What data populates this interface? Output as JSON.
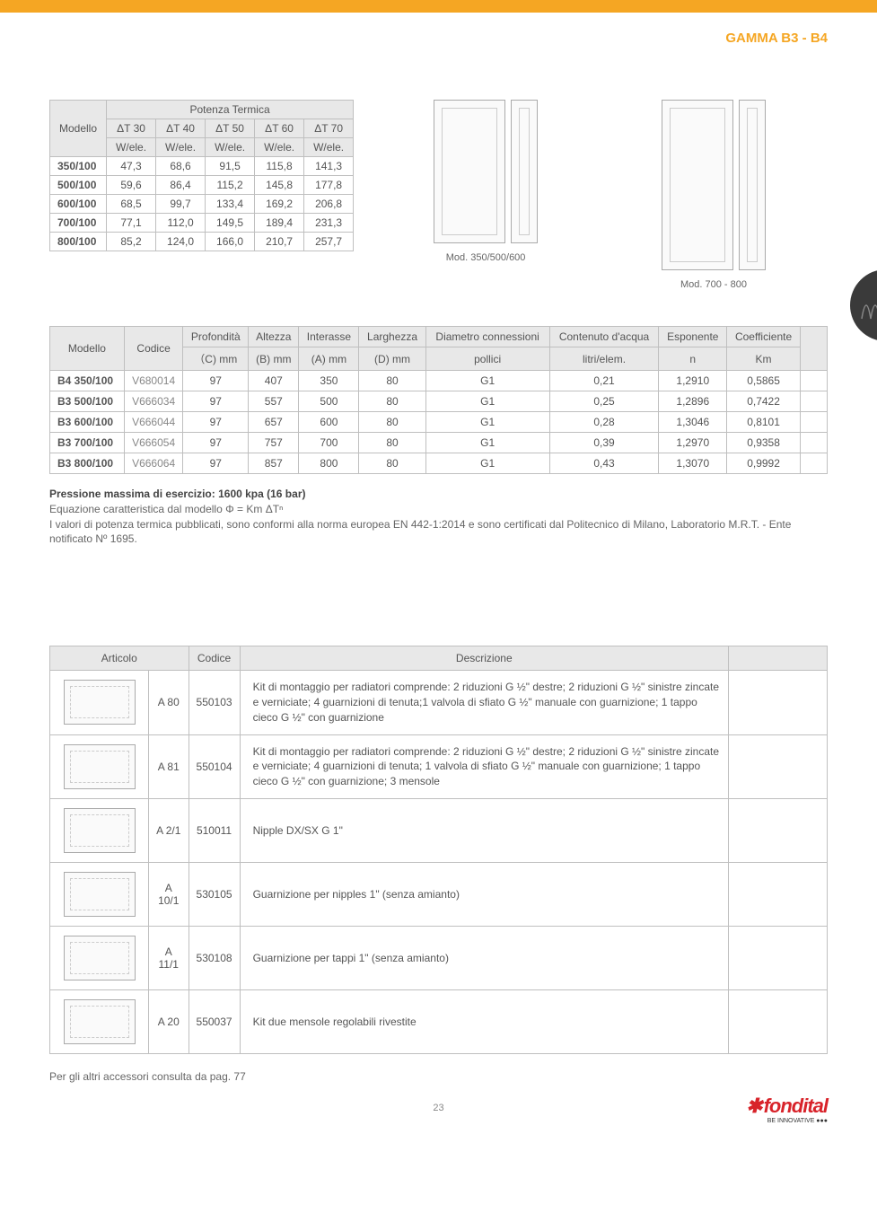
{
  "header": {
    "title": "GAMMA B3 - B4"
  },
  "thermal": {
    "group_label": "Potenza Termica",
    "model_header": "Modello",
    "delta_headers": [
      "ΔT 30",
      "ΔT 40",
      "ΔT 50",
      "ΔT 60",
      "ΔT 70"
    ],
    "unit": "W/ele.",
    "rows": [
      {
        "model": "350/100",
        "vals": [
          "47,3",
          "68,6",
          "91,5",
          "115,8",
          "141,3"
        ]
      },
      {
        "model": "500/100",
        "vals": [
          "59,6",
          "86,4",
          "115,2",
          "145,8",
          "177,8"
        ]
      },
      {
        "model": "600/100",
        "vals": [
          "68,5",
          "99,7",
          "133,4",
          "169,2",
          "206,8"
        ]
      },
      {
        "model": "700/100",
        "vals": [
          "77,1",
          "112,0",
          "149,5",
          "189,4",
          "231,3"
        ]
      },
      {
        "model": "800/100",
        "vals": [
          "85,2",
          "124,0",
          "166,0",
          "210,7",
          "257,7"
        ]
      }
    ]
  },
  "diagrams": {
    "label1": "Mod. 350/500/600",
    "label2": "Mod. 700 - 800"
  },
  "specs": {
    "headers1": [
      "Modello",
      "Codice",
      "Profondità",
      "Altezza",
      "Interasse",
      "Larghezza",
      "Diametro connessioni",
      "Contenuto d'acqua",
      "Esponente",
      "Coefficiente",
      ""
    ],
    "headers2": [
      "",
      "",
      "（C) mm",
      "(B) mm",
      "(A) mm",
      "(D) mm",
      "pollici",
      "litri/elem.",
      "n",
      "Km",
      ""
    ],
    "rows": [
      {
        "model": "B4 350/100",
        "code": "V680014",
        "c": "97",
        "b": "407",
        "a": "350",
        "d": "80",
        "conn": "G1",
        "water": "0,21",
        "n": "1,2910",
        "km": "0,5865"
      },
      {
        "model": "B3 500/100",
        "code": "V666034",
        "c": "97",
        "b": "557",
        "a": "500",
        "d": "80",
        "conn": "G1",
        "water": "0,25",
        "n": "1,2896",
        "km": "0,7422"
      },
      {
        "model": "B3 600/100",
        "code": "V666044",
        "c": "97",
        "b": "657",
        "a": "600",
        "d": "80",
        "conn": "G1",
        "water": "0,28",
        "n": "1,3046",
        "km": "0,8101"
      },
      {
        "model": "B3 700/100",
        "code": "V666054",
        "c": "97",
        "b": "757",
        "a": "700",
        "d": "80",
        "conn": "G1",
        "water": "0,39",
        "n": "1,2970",
        "km": "0,9358"
      },
      {
        "model": "B3 800/100",
        "code": "V666064",
        "c": "97",
        "b": "857",
        "a": "800",
        "d": "80",
        "conn": "G1",
        "water": "0,43",
        "n": "1,3070",
        "km": "0,9992"
      }
    ]
  },
  "notes": {
    "l1": "Pressione massima di esercizio: 1600 kpa (16 bar)",
    "l2": "Equazione caratteristica dal modello Φ = Km ΔTⁿ",
    "l3": "I valori di potenza termica pubblicati, sono conformi alla norma europea EN 442-1:2014 e sono certificati dal Politecnico di Milano, Laboratorio M.R.T. - Ente notificato Nº 1695."
  },
  "accessories": {
    "headers": [
      "Articolo",
      "Codice",
      "Descrizione",
      ""
    ],
    "rows": [
      {
        "art": "A 80",
        "code": "550103",
        "desc": "Kit di montaggio per radiatori comprende: 2 riduzioni G ½\" destre; 2 riduzioni G ½\" sinistre zincate e verniciate; 4 guarnizioni di tenuta;1 valvola di sfiato G ½\" manuale con guarnizione; 1 tappo cieco G ½\" con guarnizione"
      },
      {
        "art": "A 81",
        "code": "550104",
        "desc": "Kit di montaggio per radiatori comprende: 2 riduzioni G ½\" destre; 2 riduzioni G ½\" sinistre zincate e verniciate; 4 guarnizioni di tenuta; 1 valvola di sfiato G ½\" manuale con guarnizione; 1 tappo cieco G ½\" con guarnizione; 3 mensole"
      },
      {
        "art": "A 2/1",
        "code": "510011",
        "desc": "Nipple DX/SX G 1\""
      },
      {
        "art": "A 10/1",
        "code": "530105",
        "desc": "Guarnizione per nipples 1\" (senza amianto)"
      },
      {
        "art": "A 11/1",
        "code": "530108",
        "desc": "Guarnizione per tappi 1\" (senza amianto)"
      },
      {
        "art": "A 20",
        "code": "550037",
        "desc": "Kit due mensole regolabili rivestite"
      }
    ]
  },
  "footer": {
    "note": "Per gli altri accessori consulta da pag. 77",
    "page": "23",
    "logo": "fondital",
    "logo_sub": "BE INNOVATIVE ●●●"
  },
  "colors": {
    "accent": "#f5a623",
    "brand": "#d8232a",
    "border": "#bfbfbf",
    "header_bg": "#e8e8e8"
  }
}
